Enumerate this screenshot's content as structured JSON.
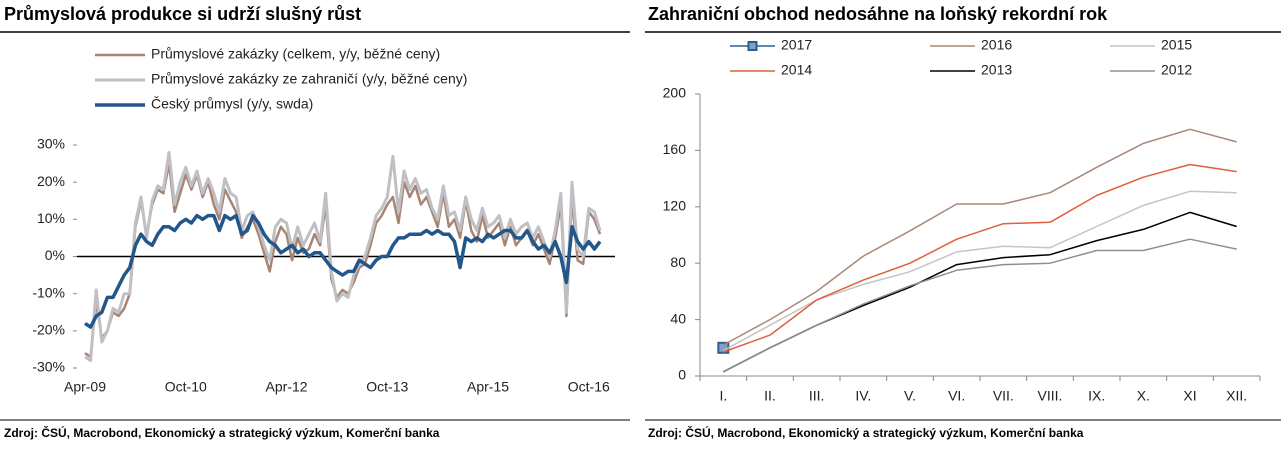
{
  "chart_data": [
    {
      "type": "line",
      "title": "Průmyslová produkce si udrží slušný růst",
      "categories": [
        "Apr-09",
        null,
        null,
        null,
        null,
        null,
        null,
        null,
        null,
        null,
        null,
        null,
        null,
        null,
        null,
        null,
        null,
        null,
        "Oct-10",
        null,
        null,
        null,
        null,
        null,
        null,
        null,
        null,
        null,
        null,
        null,
        null,
        null,
        null,
        null,
        null,
        null,
        "Apr-12",
        null,
        null,
        null,
        null,
        null,
        null,
        null,
        null,
        null,
        null,
        null,
        null,
        null,
        null,
        null,
        null,
        null,
        "Oct-13",
        null,
        null,
        null,
        null,
        null,
        null,
        null,
        null,
        null,
        null,
        null,
        null,
        null,
        null,
        null,
        null,
        null,
        "Apr-15",
        null,
        null,
        null,
        null,
        null,
        null,
        null,
        null,
        null,
        null,
        null,
        null,
        null,
        null,
        null,
        null,
        null,
        "Oct-16",
        null,
        null
      ],
      "series": [
        {
          "name": "Průmyslové zakázky (celkem, y/y, běžné ceny)",
          "color": "#a88474",
          "linewidth": 2.5,
          "values": [
            -26,
            -27,
            -12,
            -22,
            -20,
            -15,
            -16,
            -14,
            -10,
            8,
            15,
            6,
            14,
            18,
            17,
            25,
            12,
            17,
            22,
            18,
            22,
            16,
            20,
            14,
            10,
            18,
            15,
            12,
            5,
            8,
            10,
            6,
            1,
            -4,
            4,
            8,
            6,
            -1,
            5,
            1,
            2,
            6,
            3,
            14,
            -6,
            -11,
            -9,
            -10,
            -7,
            -3,
            -2,
            3,
            9,
            11,
            14,
            16,
            9,
            20,
            16,
            19,
            14,
            16,
            12,
            8,
            17,
            8,
            10,
            5,
            15,
            7,
            4,
            11,
            5,
            7,
            9,
            3,
            8,
            3,
            5,
            7,
            3,
            6,
            2,
            -2,
            5,
            14,
            -16,
            16,
            -1,
            -2,
            12,
            10,
            6
          ]
        },
        {
          "name": "Průmyslové zakázky ze zahraničí (y/y, běžné ceny)",
          "color": "#c0c0c4",
          "linewidth": 3,
          "values": [
            -27,
            -28,
            -9,
            -23,
            -20,
            -14,
            -15,
            -10,
            -10,
            9,
            16,
            5,
            15,
            19,
            18,
            28,
            14,
            20,
            24,
            19,
            23,
            17,
            21,
            17,
            12,
            21,
            17,
            16,
            7,
            11,
            12,
            8,
            3,
            -1,
            8,
            10,
            9,
            2,
            8,
            3,
            6,
            9,
            4,
            17,
            -4,
            -12,
            -10,
            -11,
            -5,
            -2,
            0,
            5,
            11,
            13,
            16,
            27,
            12,
            23,
            18,
            21,
            17,
            18,
            13,
            10,
            19,
            11,
            12,
            7,
            16,
            10,
            7,
            13,
            8,
            9,
            11,
            5,
            10,
            6,
            8,
            9,
            5,
            8,
            4,
            0,
            7,
            17,
            -15,
            20,
            2,
            0,
            13,
            12,
            7
          ]
        },
        {
          "name": "Český průmysl (y/y, swda)",
          "color": "#23568a",
          "linewidth": 3.5,
          "values": [
            -18,
            -19,
            -16,
            -15,
            -11,
            -11,
            -8,
            -5,
            -3,
            3,
            6,
            4,
            3,
            6,
            8,
            8,
            7,
            9,
            10,
            9,
            11,
            10,
            11,
            11,
            7,
            11,
            10,
            11,
            6,
            7,
            11,
            9,
            6,
            4,
            3,
            1,
            2,
            3,
            1,
            2,
            0,
            1,
            1,
            -1,
            -3,
            -4,
            -5,
            -4,
            -4,
            -1,
            -2,
            -3,
            -1,
            0,
            0,
            3,
            5,
            5,
            6,
            6,
            6,
            7,
            6,
            7,
            6,
            6,
            4,
            -3,
            5,
            4,
            5,
            4,
            6,
            5,
            6,
            7,
            7,
            5,
            5,
            7,
            4,
            2,
            3,
            1,
            4,
            0,
            -7,
            8,
            4,
            2,
            4,
            2,
            4
          ]
        }
      ],
      "ylim": [
        -30,
        30
      ],
      "yticks": [
        {
          "value": -30,
          "label": "-30%"
        },
        {
          "value": -20,
          "label": "-20%"
        },
        {
          "value": -10,
          "label": "-10%"
        },
        {
          "value": 0,
          "label": "0%"
        },
        {
          "value": 10,
          "label": "10%"
        },
        {
          "value": 20,
          "label": "20%"
        },
        {
          "value": 30,
          "label": "30%"
        }
      ],
      "legend": "upper left",
      "legend_columns": 1,
      "source": "Zdroj: ČSÚ, Macrobond, Ekonomický a strategický výzkum, Komerční banka"
    },
    {
      "type": "line",
      "title": "Zahraniční obchod nedosáhne na loňský rekordní rok",
      "categories": [
        "I.",
        "II.",
        "III.",
        "IV.",
        "V.",
        "VI.",
        "VII.",
        "VIII.",
        "IX.",
        "X.",
        "XI",
        "XII."
      ],
      "series": [
        {
          "name": "2017",
          "color": "#2e5f8a",
          "linewidth": 1.5,
          "marker": "square",
          "values": [
            20,
            null,
            null,
            null,
            null,
            null,
            null,
            null,
            null,
            null,
            null,
            null
          ]
        },
        {
          "name": "2016",
          "color": "#a88878",
          "linewidth": 1.5,
          "values": [
            22,
            40,
            60,
            85,
            103,
            122,
            122,
            130,
            148,
            165,
            175,
            166
          ]
        },
        {
          "name": "2015",
          "color": "#c4c4c4",
          "linewidth": 1.5,
          "values": [
            18,
            36,
            54,
            65,
            74,
            88,
            92,
            91,
            106,
            121,
            131,
            130
          ]
        },
        {
          "name": "2014",
          "color": "#e0603c",
          "linewidth": 1.5,
          "values": [
            17,
            29,
            54,
            68,
            80,
            97,
            108,
            109,
            128,
            141,
            150,
            145
          ]
        },
        {
          "name": "2013",
          "color": "#000000",
          "linewidth": 1.5,
          "values": [
            3,
            20,
            36,
            50,
            63,
            79,
            84,
            86,
            96,
            104,
            116,
            106
          ]
        },
        {
          "name": "2012",
          "color": "#909090",
          "linewidth": 1.5,
          "values": [
            3,
            20,
            36,
            51,
            64,
            75,
            79,
            80,
            89,
            89,
            97,
            90
          ]
        }
      ],
      "ylim": [
        0,
        200
      ],
      "yticks": [
        0,
        40,
        80,
        120,
        160,
        200
      ],
      "legend": "upper center",
      "legend_columns": 3,
      "source": "Zdroj: ČSÚ, Macrobond, Ekonomický a strategický výzkum, Komerční banka"
    }
  ]
}
